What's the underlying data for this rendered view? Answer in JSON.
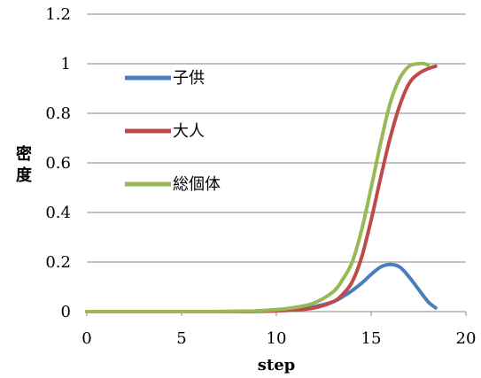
{
  "chart_data": {
    "type": "line",
    "xlabel": "step",
    "ylabel": "密度",
    "xlim": [
      0,
      20
    ],
    "ylim": [
      0,
      1.2
    ],
    "x_ticks": [
      "0",
      "5",
      "10",
      "15",
      "20"
    ],
    "y_ticks": [
      "0",
      "0.2",
      "0.4",
      "0.6",
      "0.8",
      "1",
      "1.2"
    ],
    "grid": "horizontal",
    "legend_position": "left, inside plot",
    "series": [
      {
        "name": "子供",
        "color": "#4a7ebb",
        "x": [
          0,
          2,
          4,
          6,
          8,
          9,
          10,
          11,
          12,
          13,
          13.5,
          14,
          14.5,
          15,
          15.5,
          16,
          16.5,
          17,
          17.5,
          18,
          18.4
        ],
        "y": [
          0,
          0,
          0,
          0,
          0.001,
          0.002,
          0.005,
          0.01,
          0.02,
          0.04,
          0.06,
          0.085,
          0.115,
          0.15,
          0.18,
          0.19,
          0.18,
          0.14,
          0.09,
          0.04,
          0.015
        ]
      },
      {
        "name": "大人",
        "color": "#be4b48",
        "x": [
          0,
          2,
          4,
          6,
          8,
          9,
          10,
          11,
          12,
          13,
          13.5,
          14,
          14.5,
          15,
          15.5,
          16,
          16.5,
          17,
          17.5,
          18,
          18.4
        ],
        "y": [
          0,
          0,
          0,
          0,
          0,
          0.001,
          0.003,
          0.007,
          0.015,
          0.04,
          0.07,
          0.12,
          0.22,
          0.37,
          0.54,
          0.7,
          0.83,
          0.92,
          0.96,
          0.98,
          0.99
        ]
      },
      {
        "name": "総個体",
        "color": "#98b954",
        "x": [
          0,
          2,
          4,
          6,
          8,
          9,
          10,
          11,
          12,
          13,
          13.5,
          14,
          14.5,
          15,
          15.5,
          16,
          16.5,
          17,
          17.5,
          17.8,
          18
        ],
        "y": [
          0,
          0,
          0,
          0,
          0.001,
          0.003,
          0.008,
          0.017,
          0.035,
          0.08,
          0.13,
          0.2,
          0.33,
          0.5,
          0.68,
          0.84,
          0.94,
          0.99,
          1.0,
          1.0,
          0.995
        ]
      }
    ]
  }
}
